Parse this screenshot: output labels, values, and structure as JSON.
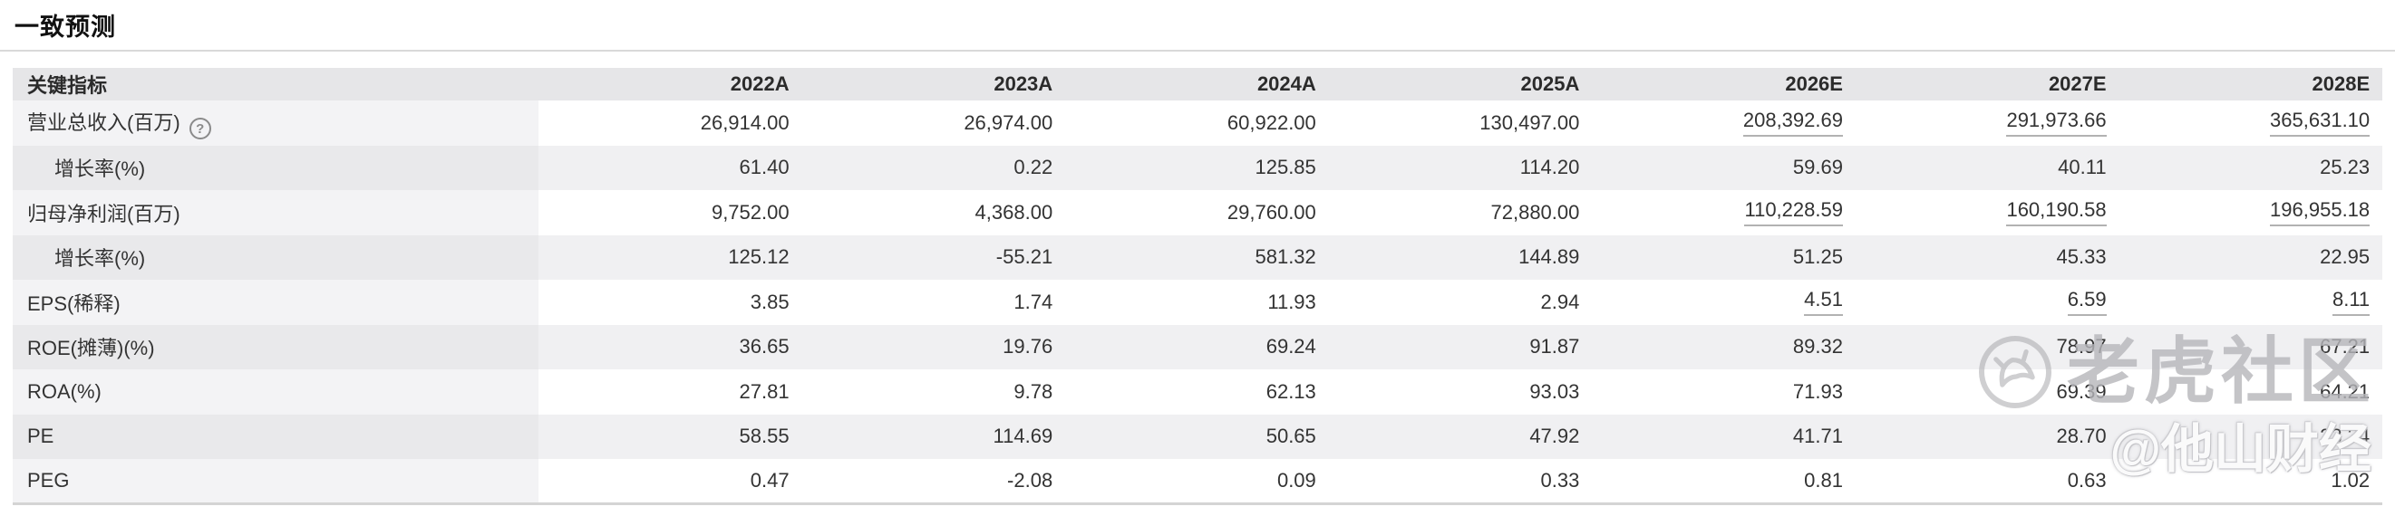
{
  "page": {
    "title": "一致预测"
  },
  "table": {
    "key_metric_header": "关键指标",
    "help_glyph": "?",
    "year_headers": [
      "2022A",
      "2023A",
      "2024A",
      "2025A",
      "2026E",
      "2027E",
      "2028E"
    ],
    "rows": [
      {
        "label": "营业总收入(百万)",
        "has_help": true,
        "indent": false,
        "underline_estimates": true,
        "values": [
          "26,914.00",
          "26,974.00",
          "60,922.00",
          "130,497.00",
          "208,392.69",
          "291,973.66",
          "365,631.10"
        ]
      },
      {
        "label": "增长率(%)",
        "has_help": false,
        "indent": true,
        "underline_estimates": false,
        "values": [
          "61.40",
          "0.22",
          "125.85",
          "114.20",
          "59.69",
          "40.11",
          "25.23"
        ]
      },
      {
        "label": "归母净利润(百万)",
        "has_help": false,
        "indent": false,
        "underline_estimates": true,
        "values": [
          "9,752.00",
          "4,368.00",
          "29,760.00",
          "72,880.00",
          "110,228.59",
          "160,190.58",
          "196,955.18"
        ]
      },
      {
        "label": "增长率(%)",
        "has_help": false,
        "indent": true,
        "underline_estimates": false,
        "values": [
          "125.12",
          "-55.21",
          "581.32",
          "144.89",
          "51.25",
          "45.33",
          "22.95"
        ]
      },
      {
        "label": "EPS(稀释)",
        "has_help": false,
        "indent": false,
        "underline_estimates": true,
        "values": [
          "3.85",
          "1.74",
          "11.93",
          "2.94",
          "4.51",
          "6.59",
          "8.11"
        ]
      },
      {
        "label": "ROE(摊薄)(%)",
        "has_help": false,
        "indent": false,
        "underline_estimates": false,
        "values": [
          "36.65",
          "19.76",
          "69.24",
          "91.87",
          "89.32",
          "78.97",
          "67.21"
        ]
      },
      {
        "label": "ROA(%)",
        "has_help": false,
        "indent": false,
        "underline_estimates": false,
        "values": [
          "27.81",
          "9.78",
          "62.13",
          "93.03",
          "71.93",
          "69.39",
          "64.21"
        ]
      },
      {
        "label": "PE",
        "has_help": false,
        "indent": false,
        "underline_estimates": false,
        "values": [
          "58.55",
          "114.69",
          "50.65",
          "47.92",
          "41.71",
          "28.70",
          "23.34"
        ]
      },
      {
        "label": "PEG",
        "has_help": false,
        "indent": false,
        "underline_estimates": false,
        "values": [
          "0.47",
          "-2.08",
          "0.09",
          "0.33",
          "0.81",
          "0.63",
          "1.02"
        ]
      }
    ]
  },
  "watermark": {
    "brand": "老虎社区",
    "handle": "@他山财经"
  },
  "colors": {
    "header_bg": "#e6e6e8",
    "row_odd_label_bg": "#f3f3f5",
    "row_even_label_bg": "#e9e9eb",
    "row_even_data_bg": "#f0f0f2",
    "text": "#333333",
    "estimate_underline": "#b2b2b2",
    "divider": "#d9d9d9",
    "watermark_gray": "#b6b6ba"
  }
}
